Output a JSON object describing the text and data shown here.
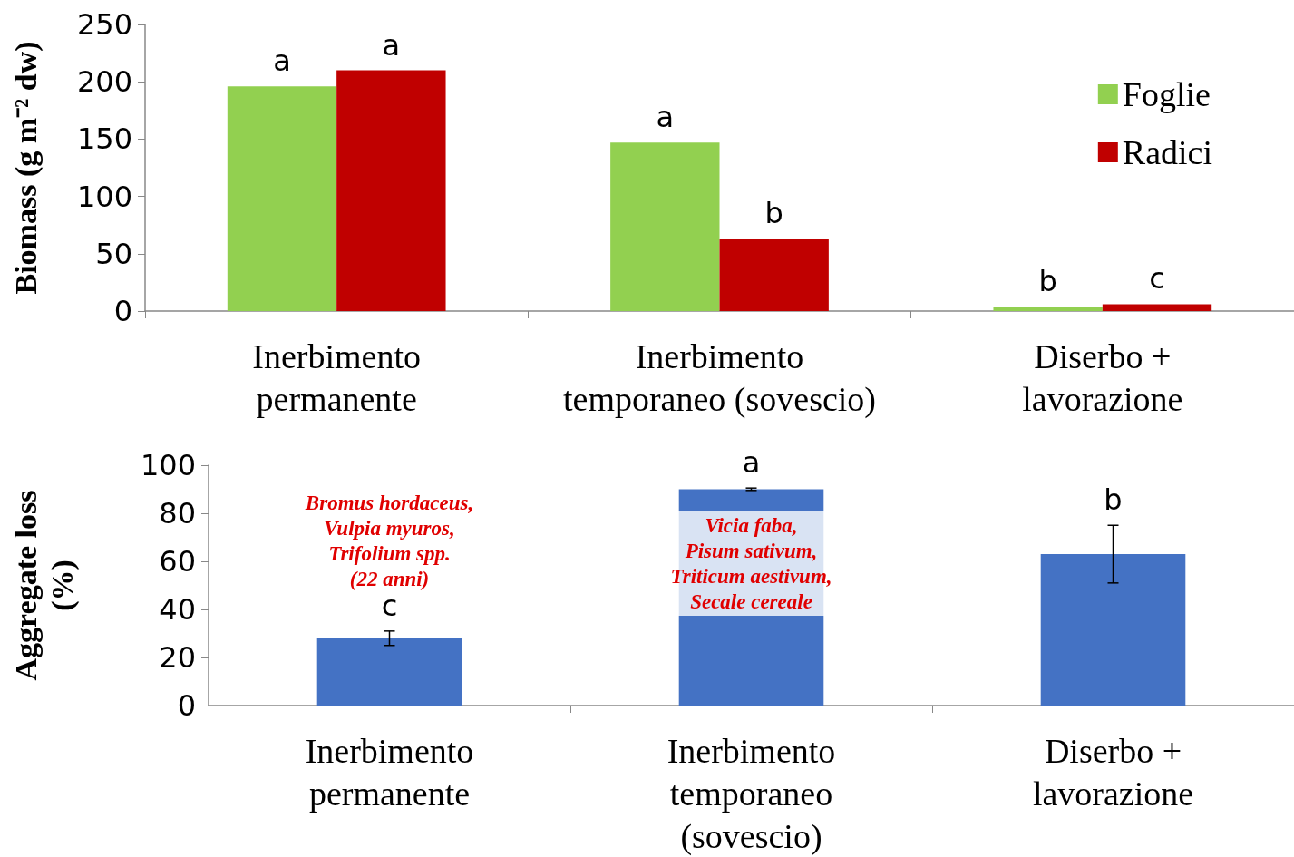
{
  "chart_data": [
    {
      "type": "bar",
      "ylabel": "Biomass (g m⁻² dw)",
      "categories": [
        "Inerbimento\npermanente",
        "Inerbimento\ntemporaneo (sovescio)",
        "Diserbo +\nlavorazione"
      ],
      "series": [
        {
          "name": "Foglie",
          "color": "#92d050",
          "values": [
            196,
            147,
            4
          ],
          "value_labels": [
            "a",
            "a",
            "b"
          ]
        },
        {
          "name": "Radici",
          "color": "#c00000",
          "values": [
            210,
            63,
            6
          ],
          "value_labels": [
            "a",
            "b",
            "c"
          ]
        }
      ],
      "ylim": [
        0,
        250
      ],
      "yticks": [
        0,
        50,
        100,
        150,
        200,
        250
      ],
      "grid": false,
      "legend": "top right"
    },
    {
      "type": "bar",
      "ylabel": "Aggregate loss\n(%)",
      "categories": [
        "Inerbimento\npermanente",
        "Inerbimento\ntemporaneo\n(sovescio)",
        "Diserbo +\nlavorazione"
      ],
      "series": [
        {
          "color": "#4472c4",
          "values": [
            28,
            90,
            63
          ],
          "errors": [
            3,
            0.5,
            12
          ],
          "value_labels": [
            "c",
            "a",
            "b"
          ]
        }
      ],
      "ylim": [
        0,
        100
      ],
      "yticks": [
        0,
        20,
        40,
        60,
        80,
        100
      ],
      "grid": false,
      "legend": false,
      "annotations": [
        "Bromus hordaceus,\nVulpia myuros,\nTrifolium spp.\n(22 anni)",
        "Vicia faba,\nPisum sativum,\nTriticum aestivum,\nSecale cereale"
      ]
    }
  ]
}
